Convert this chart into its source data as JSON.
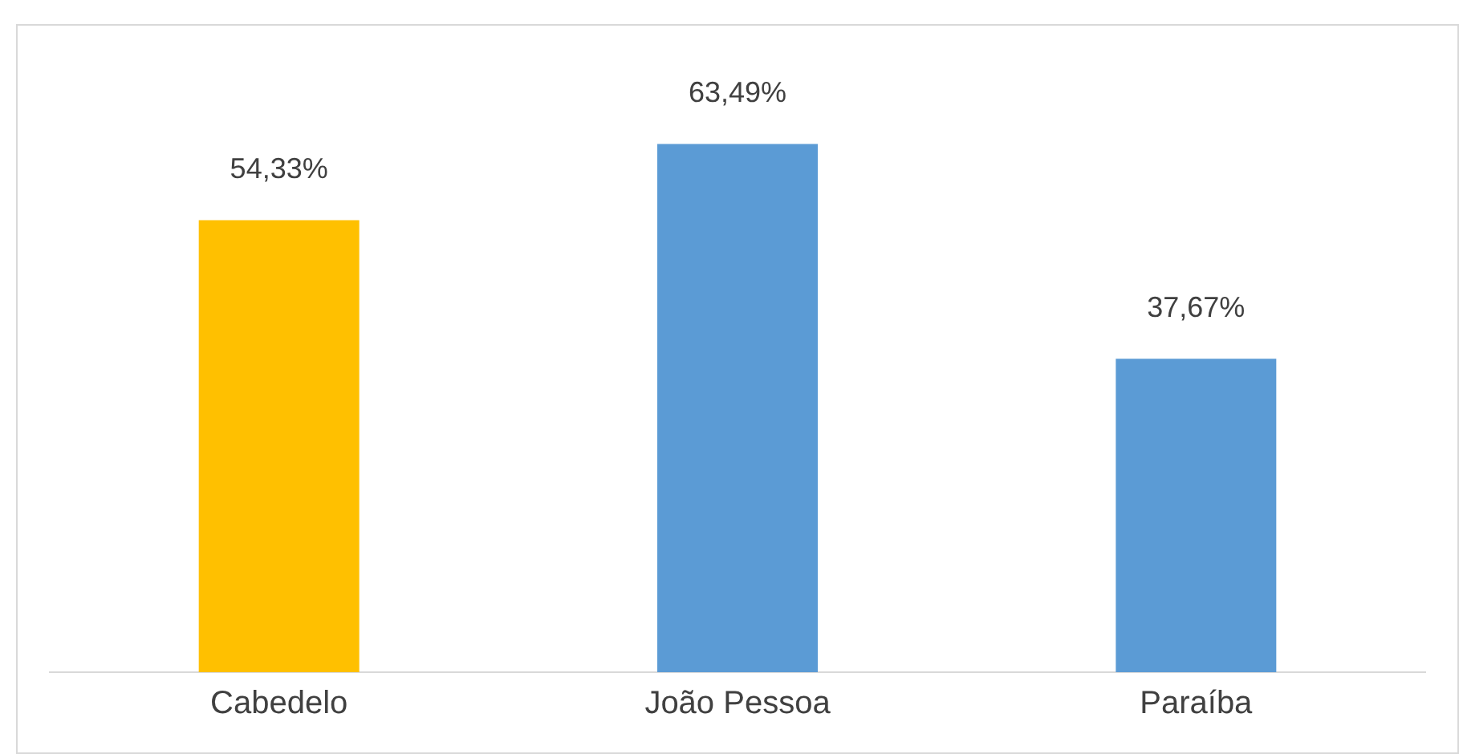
{
  "chart_data": {
    "type": "bar",
    "categories": [
      "Cabedelo",
      "João Pessoa",
      "Paraíba"
    ],
    "values": [
      54.33,
      63.49,
      37.67
    ],
    "colors": [
      "#ffc000",
      "#5b9bd5",
      "#5b9bd5"
    ],
    "value_labels": [
      "54,33%",
      "63,49%",
      "37,67%"
    ],
    "grid": false,
    "legend": false
  }
}
